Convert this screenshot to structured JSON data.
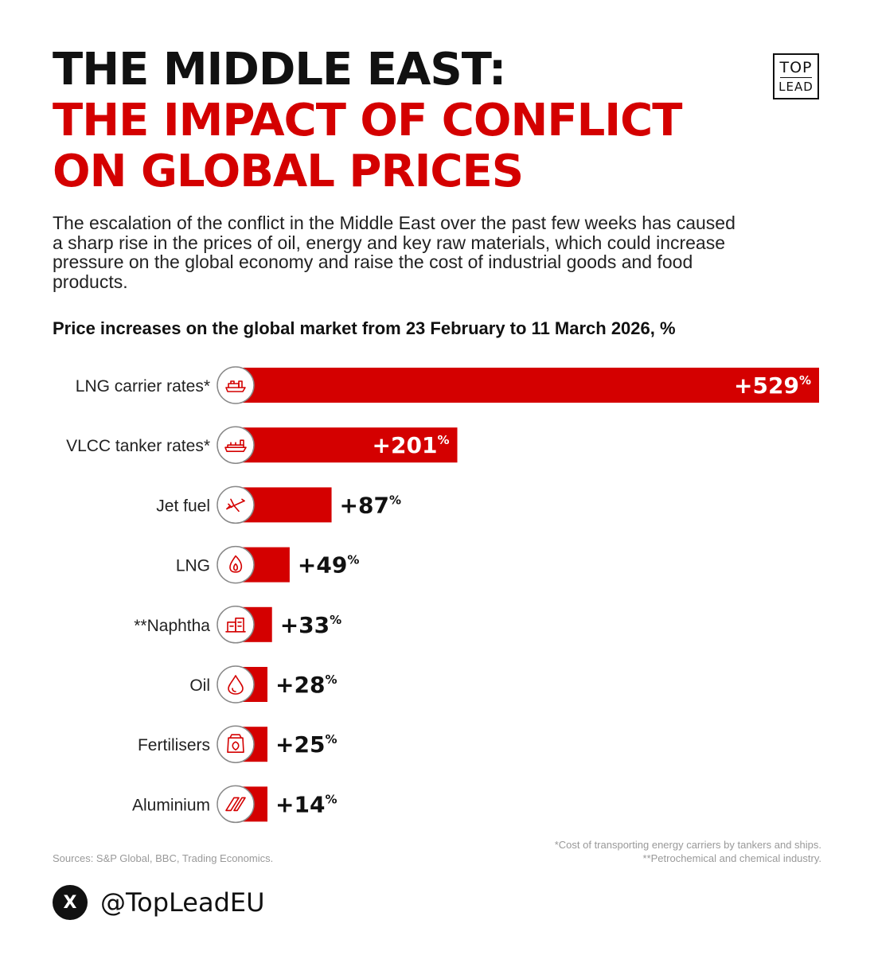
{
  "header": {
    "title_line1": "THE MIDDLE EAST:",
    "title_line2": "THE IMPACT OF CONFLICT",
    "title_line3": "ON GLOBAL PRICES",
    "logo_top": "TOP",
    "logo_bottom": "LEAD"
  },
  "intro": "The escalation of the conflict in the Middle East over the past few weeks has caused a sharp rise in the prices of oil, energy and key raw materials, which could increase pressure on the global economy and raise the cost of industrial goods and food products.",
  "colors": {
    "accent": "#d40000",
    "text": "#111111",
    "muted": "#999999"
  },
  "chart_data": {
    "type": "bar",
    "orientation": "horizontal",
    "title": "Price increases on the global market from 23 February to 11 March 2026, %",
    "unit": "%",
    "categories": [
      "LNG carrier rates*",
      "VLCC tanker rates*",
      "Jet fuel",
      "LNG",
      "**Naphtha",
      "Oil",
      "Fertilisers",
      "Aluminium"
    ],
    "values": [
      529,
      201,
      87,
      49,
      33,
      28,
      25,
      14
    ],
    "icons": [
      "ship-icon",
      "tanker-icon",
      "airplane-icon",
      "flame-icon",
      "refinery-icon",
      "oil-drop-icon",
      "fertiliser-bag-icon",
      "aluminium-bars-icon"
    ],
    "xlim": [
      0,
      529
    ]
  },
  "footer": {
    "note1": "*Cost of transporting energy carriers by tankers and ships.",
    "note2": "**Petrochemical and chemical industry.",
    "sources": "Sources: S&P Global, BBC, Trading Economics.",
    "social_icon": "X",
    "handle": "@TopLeadEU"
  }
}
